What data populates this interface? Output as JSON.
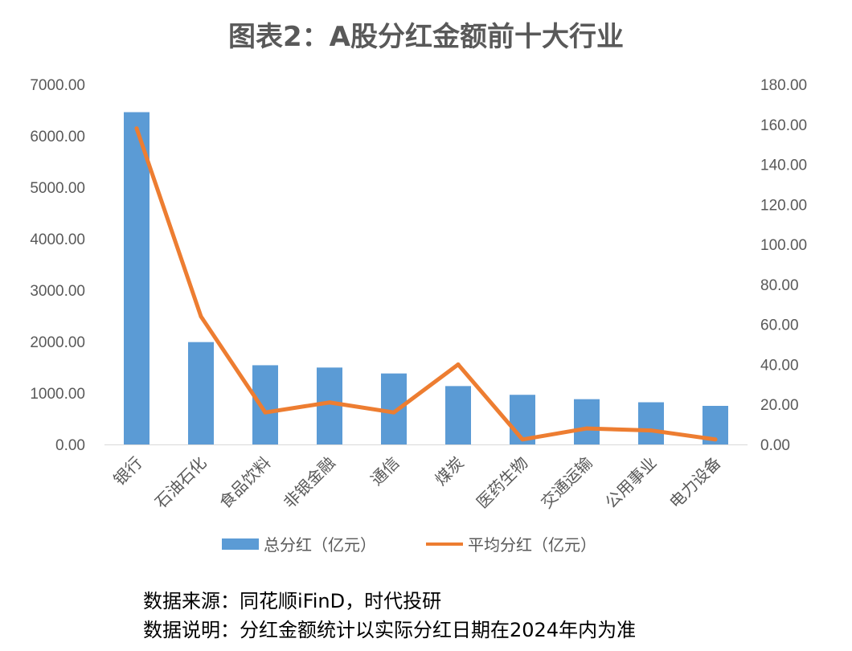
{
  "chart_data": {
    "type": "bar",
    "title": "图表2：A股分红金额前十大行业",
    "categories": [
      "银行",
      "石油石化",
      "食品饮料",
      "非银金融",
      "通信",
      "煤炭",
      "医药生物",
      "交通运输",
      "公用事业",
      "电力设备"
    ],
    "series": [
      {
        "name": "总分红（亿元）",
        "type": "bar",
        "axis": "left",
        "color": "#5B9BD5",
        "values": [
          6460,
          1990,
          1540,
          1495,
          1380,
          1135,
          965,
          880,
          820,
          750
        ]
      },
      {
        "name": "平均分红（亿元）",
        "type": "line",
        "axis": "right",
        "color": "#ED7D31",
        "values": [
          158,
          64,
          16,
          21,
          16,
          40,
          2.5,
          8,
          7,
          2.5
        ]
      }
    ],
    "ylim_left": [
      0,
      7000
    ],
    "yticks_left": [
      "7000.00",
      "6000.00",
      "5000.00",
      "4000.00",
      "3000.00",
      "2000.00",
      "1000.00",
      "0.00"
    ],
    "ylim_right": [
      0,
      180
    ],
    "yticks_right": [
      "180.00",
      "160.00",
      "140.00",
      "120.00",
      "100.00",
      "80.00",
      "60.00",
      "40.00",
      "20.00",
      "0.00"
    ],
    "grid": false,
    "legend_position": "bottom"
  },
  "legend": {
    "bar_label": "总分红（亿元）",
    "line_label": "平均分红（亿元）"
  },
  "notes": {
    "source": "数据来源：同花顺iFinD，时代投研",
    "explanation": "数据说明：分红金额统计以实际分红日期在2024年内为准"
  }
}
